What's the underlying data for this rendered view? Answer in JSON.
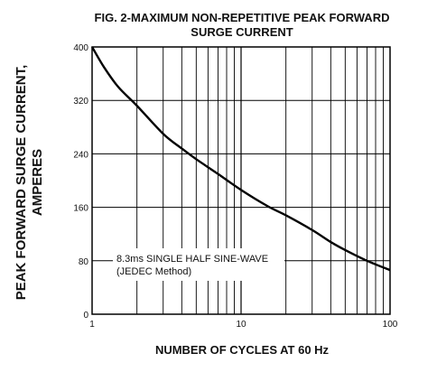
{
  "chart_data": {
    "type": "line",
    "title_line1": "FIG. 2-MAXIMUM NON-REPETITIVE PEAK FORWARD",
    "title_line2": "SURGE CURRENT",
    "xlabel": "NUMBER OF CYCLES AT 60 Hz",
    "ylabel_line1": "PEAK FORWARD SURGE CURRENT,",
    "ylabel_line2": "AMPERES",
    "x_scale": "log",
    "xlim": [
      1,
      100
    ],
    "ylim": [
      0,
      400
    ],
    "x_ticks": [
      "1",
      "10",
      "100"
    ],
    "y_ticks": [
      "0",
      "80",
      "160",
      "240",
      "320",
      "400"
    ],
    "grid": true,
    "annotation_line1": "8.3ms SINGLE HALF SINE-WAVE",
    "annotation_line2": "(JEDEC Method)",
    "series": [
      {
        "x": [
          1,
          1.2,
          1.5,
          2,
          3,
          4,
          5,
          7,
          10,
          15,
          20,
          30,
          40,
          50,
          70,
          100
        ],
        "y": [
          400,
          370,
          340,
          312,
          270,
          248,
          232,
          210,
          186,
          162,
          148,
          126,
          108,
          96,
          80,
          66
        ]
      }
    ]
  }
}
